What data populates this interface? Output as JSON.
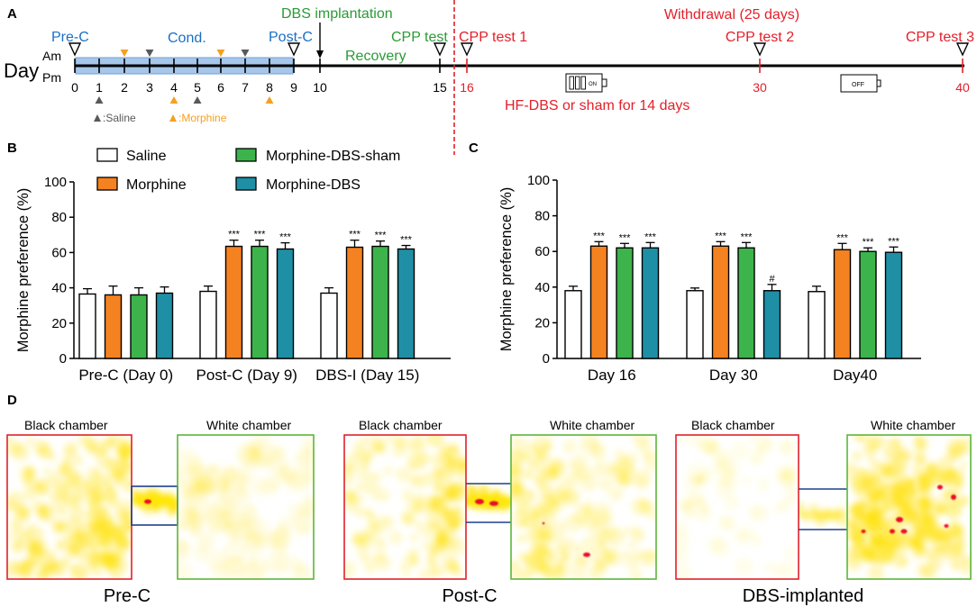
{
  "panel_labels": {
    "a": "A",
    "b": "B",
    "c": "C",
    "d": "D"
  },
  "timeline": {
    "day_label": "Day",
    "am_label": "Am",
    "pm_label": "Pm",
    "days": [
      "0",
      "1",
      "2",
      "3",
      "4",
      "5",
      "6",
      "7",
      "8",
      "9",
      "10",
      "15",
      "16",
      "30",
      "40"
    ],
    "pre_c": "Pre-C",
    "cond": "Cond.",
    "post_c": "Post-C",
    "dbs_implantation": "DBS implantation",
    "recovery": "Recovery",
    "cpp_test": "CPP test",
    "cpp_test_1": "CPP test 1",
    "cpp_test_2": "CPP test 2",
    "cpp_test_3": "CPP test 3",
    "withdrawal": "Withdrawal (25 days)",
    "hf_dbs": "HF-DBS or sham for 14 days",
    "stimulator_on": "ON",
    "stimulator_off": "OFF",
    "test_days": [
      0,
      9,
      15,
      16,
      30,
      40
    ],
    "saline_am_days": [
      3,
      7
    ],
    "saline_pm_days": [
      1,
      5
    ],
    "morphine_am_days": [
      2,
      6
    ],
    "morphine_pm_days": [
      4,
      8
    ],
    "legend": {
      "saline": ":Saline",
      "morphine": ":Morphine"
    },
    "colors": {
      "saline": "#58595b",
      "morphine": "#f4a020",
      "conditioning_band": "#a7c7ea"
    }
  },
  "chart_data": [
    {
      "type": "bar",
      "title": "",
      "xlabel": "",
      "ylabel": "Morphine preference (%)",
      "ylim": [
        0,
        100
      ],
      "yticks": [
        0,
        20,
        40,
        60,
        80,
        100
      ],
      "legend": "top",
      "categories": [
        "Pre-C (Day 0)",
        "Post-C (Day 9)",
        "DBS-I (Day 15)"
      ],
      "series": [
        {
          "name": "Saline",
          "color": "#ffffff",
          "values": [
            36.5,
            38,
            37
          ],
          "errors": [
            3,
            3,
            3
          ],
          "annotations": [
            "",
            "",
            ""
          ]
        },
        {
          "name": "Morphine",
          "color": "#f58220",
          "values": [
            36,
            63.5,
            63
          ],
          "errors": [
            5,
            3.5,
            4
          ],
          "annotations": [
            "",
            "***",
            "***"
          ]
        },
        {
          "name": "Morphine-DBS-sham",
          "color": "#3cb44b",
          "values": [
            36,
            63.5,
            63.5
          ],
          "errors": [
            4,
            3.5,
            3
          ],
          "annotations": [
            "",
            "***",
            "***"
          ]
        },
        {
          "name": "Morphine-DBS",
          "color": "#1f8fa6",
          "values": [
            37,
            62,
            62
          ],
          "errors": [
            3.5,
            3.5,
            2
          ],
          "annotations": [
            "",
            "***",
            "***"
          ]
        }
      ]
    },
    {
      "type": "bar",
      "title": "",
      "xlabel": "",
      "ylabel": "Morphine preference (%)",
      "ylim": [
        0,
        100
      ],
      "yticks": [
        0,
        20,
        40,
        60,
        80,
        100
      ],
      "legend": "top",
      "categories": [
        "Day 16",
        "Day 30",
        "Day40"
      ],
      "series": [
        {
          "name": "Saline",
          "color": "#ffffff",
          "values": [
            38,
            38,
            37.5
          ],
          "errors": [
            2.5,
            1.5,
            3
          ],
          "annotations": [
            "",
            "",
            ""
          ]
        },
        {
          "name": "Morphine",
          "color": "#f58220",
          "values": [
            63,
            63,
            61
          ],
          "errors": [
            2.5,
            2.5,
            3.5
          ],
          "annotations": [
            "***",
            "***",
            "***"
          ]
        },
        {
          "name": "Morphine-DBS-sham",
          "color": "#3cb44b",
          "values": [
            62,
            62,
            60
          ],
          "errors": [
            2.5,
            3,
            2
          ],
          "annotations": [
            "***",
            "***",
            "***"
          ]
        },
        {
          "name": "Morphine-DBS",
          "color": "#1f8fa6",
          "values": [
            62,
            38,
            59.5
          ],
          "errors": [
            3,
            3.5,
            3
          ],
          "annotations": [
            "***",
            "#",
            "***"
          ]
        }
      ]
    }
  ],
  "maze": {
    "black_chamber_label": "Black chamber",
    "white_chamber_label": "White chamber",
    "captions": [
      "Pre-C",
      "Post-C",
      "DBS-implanted"
    ]
  }
}
